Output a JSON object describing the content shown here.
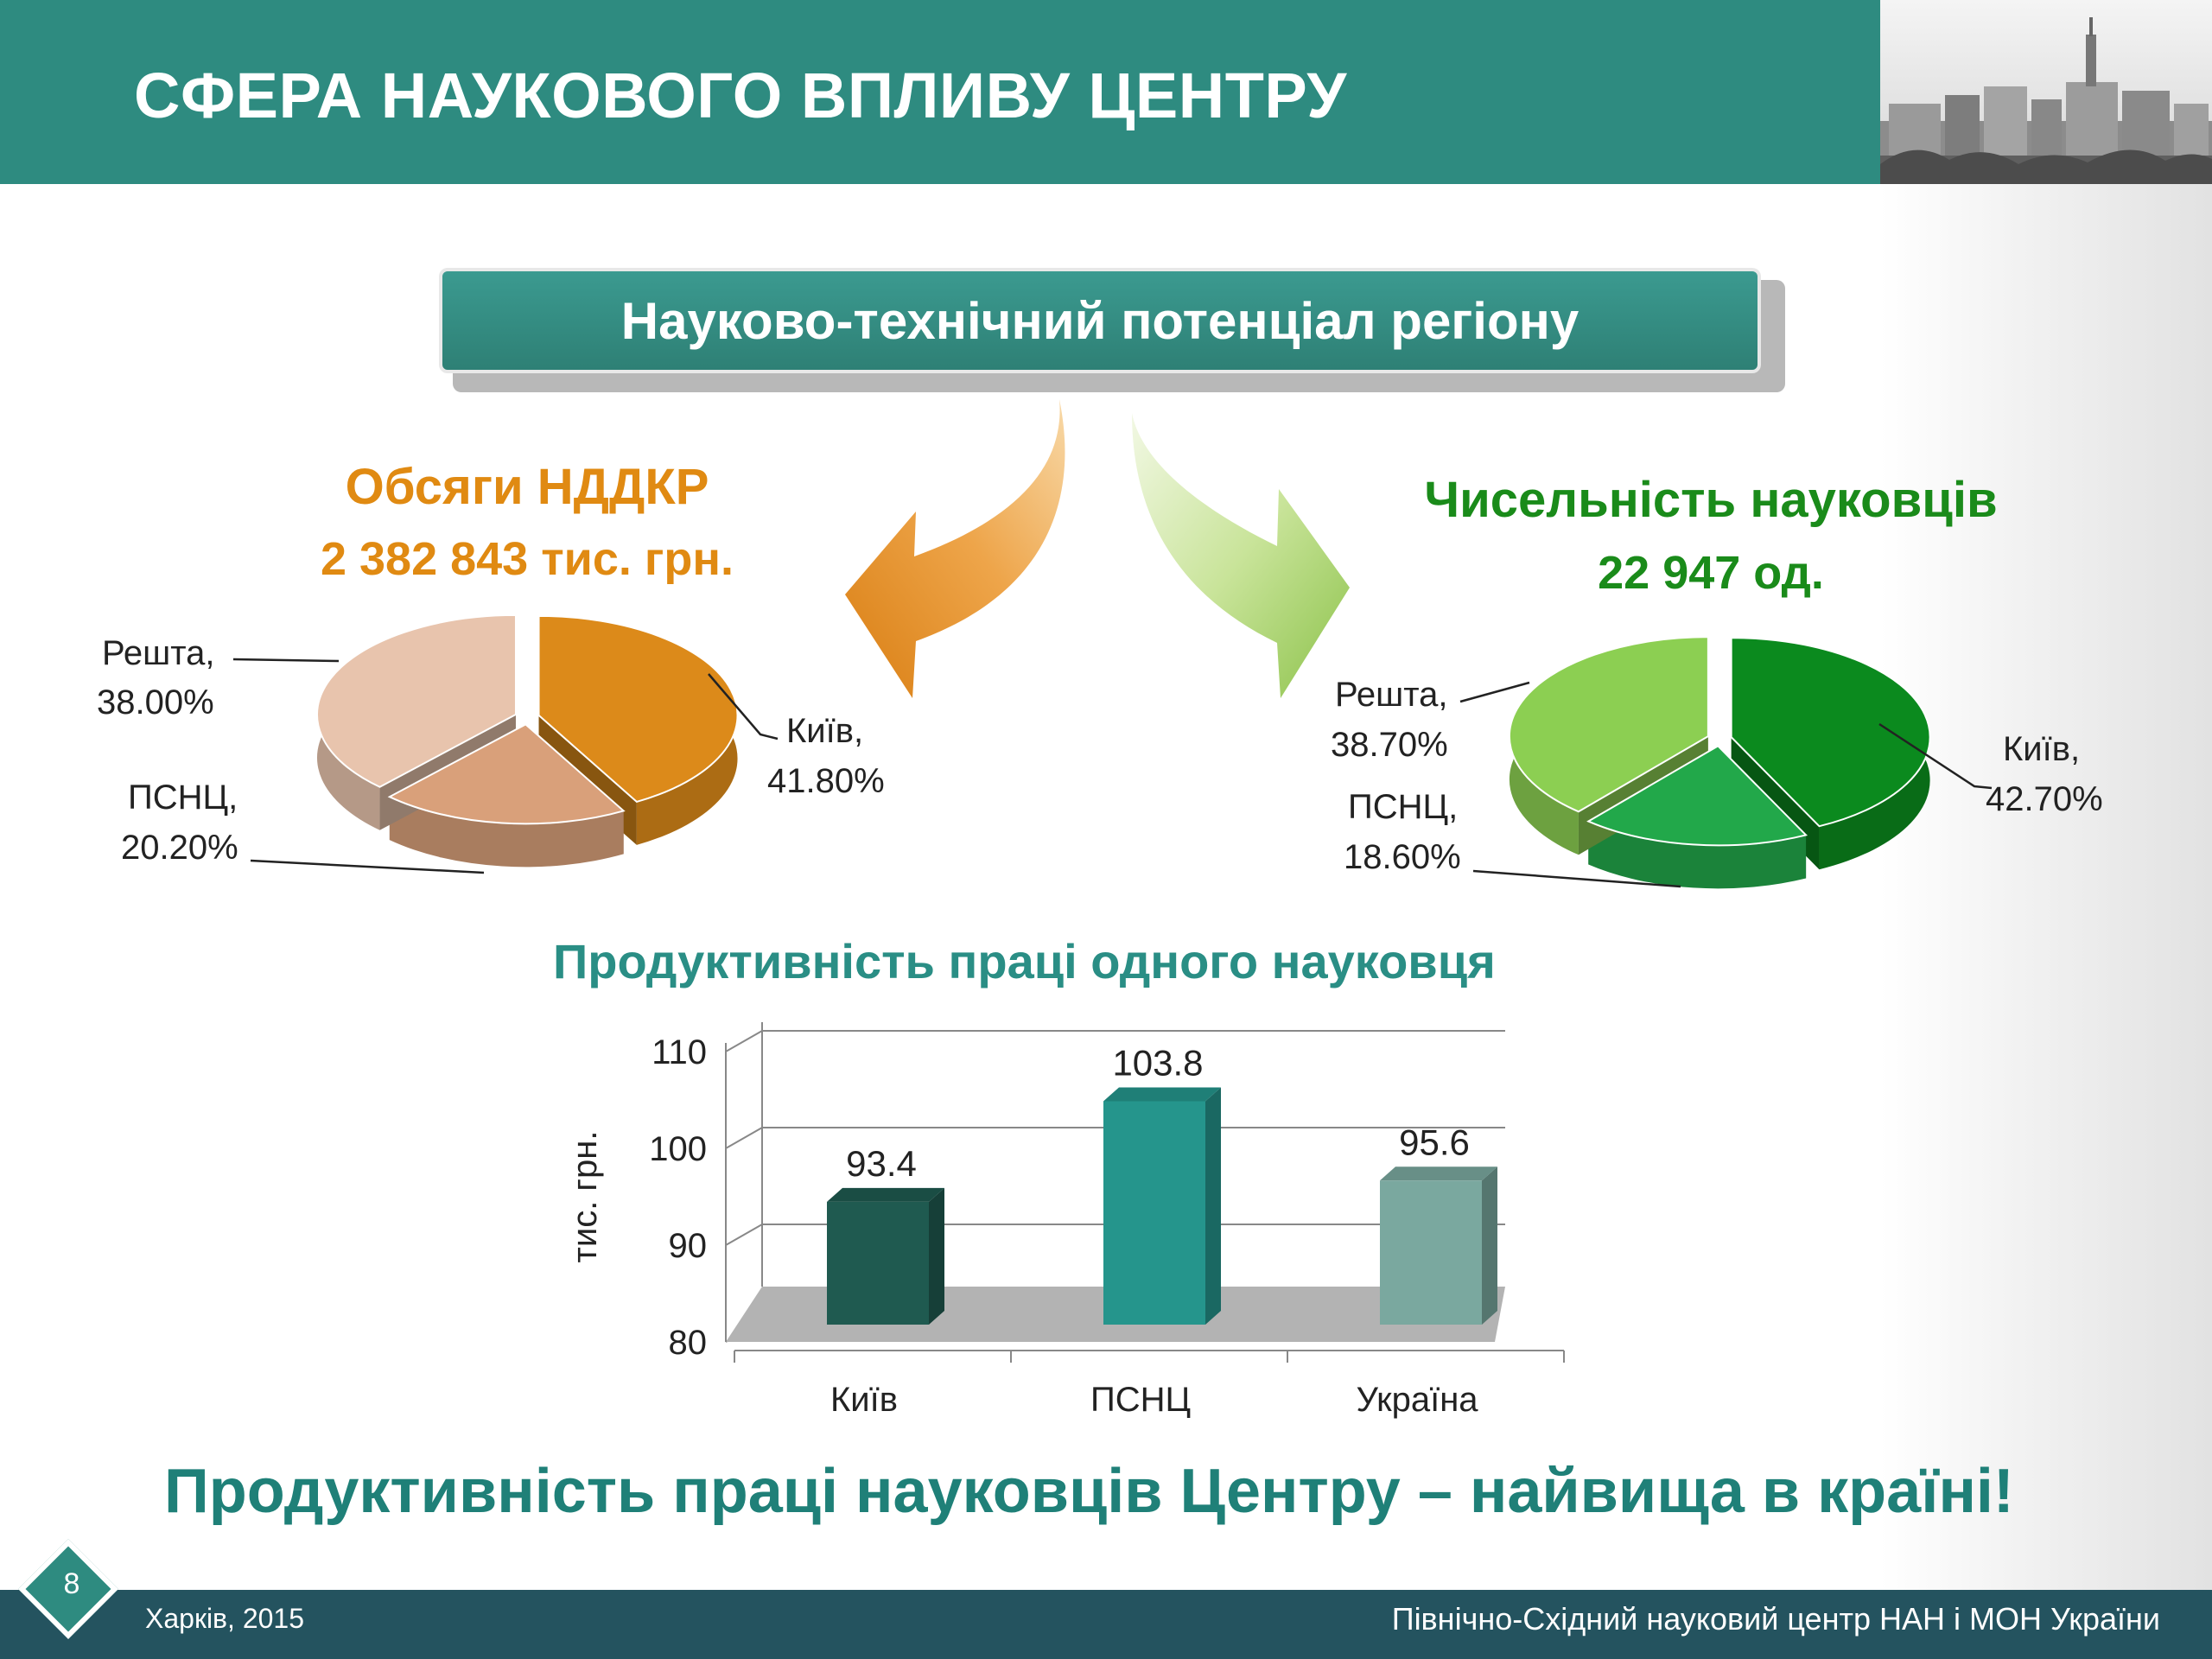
{
  "header": {
    "title": "СФЕРА НАУКОВОГО ВПЛИВУ ЦЕНТРУ"
  },
  "banner": {
    "text": "Науково-технічний потенціал регіону"
  },
  "colors": {
    "teal": "#2e8b80",
    "orange_heading": "#e08a12",
    "green_heading": "#1a8b1a",
    "bar_kyiv": "#1f5a50",
    "bar_psnc": "#25958c",
    "bar_ukraine": "#7aa89f"
  },
  "left_chart": {
    "title_line1": "Обсяги НДДКР",
    "title_line2": "2 382 843 тис. грн.",
    "label_kyiv_1": "Київ,",
    "label_kyiv_2": "41.80%",
    "label_psnc_1": "ПСНЦ,",
    "label_psnc_2": "20.20%",
    "label_rest_1": "Решта,",
    "label_rest_2": "38.00%"
  },
  "right_chart": {
    "title_line1": "Чисельність науковців",
    "title_line2": "22 947 од.",
    "label_kyiv_1": "Київ,",
    "label_kyiv_2": "42.70%",
    "label_psnc_1": "ПСНЦ,",
    "label_psnc_2": "18.60%",
    "label_rest_1": "Решта,",
    "label_rest_2": "38.70%"
  },
  "bar_chart": {
    "title": "Продуктивність праці одного науковця",
    "ylabel": "тис. грн."
  },
  "chart_data": [
    {
      "type": "pie",
      "title": "Обсяги НДДКР",
      "subtitle": "2 382 843 тис. грн.",
      "categories": [
        "Київ",
        "ПСНЦ",
        "Решта"
      ],
      "values": [
        41.8,
        20.2,
        38.0
      ],
      "colors": [
        "#dc8a1a",
        "#d9a07a",
        "#e8c4ad"
      ]
    },
    {
      "type": "pie",
      "title": "Чисельність науковців",
      "subtitle": "22 947 од.",
      "categories": [
        "Київ",
        "ПСНЦ",
        "Решта"
      ],
      "values": [
        42.7,
        18.6,
        38.7
      ],
      "colors": [
        "#0b8a1e",
        "#22a84a",
        "#8ccf52"
      ]
    },
    {
      "type": "bar",
      "title": "Продуктивність праці одного науковця",
      "categories": [
        "Київ",
        "ПСНЦ",
        "Україна"
      ],
      "values": [
        93.4,
        103.8,
        95.6
      ],
      "value_labels": [
        "93.4",
        "103.8",
        "95.6"
      ],
      "ylabel": "тис. грн.",
      "xlabel": "",
      "ylim": [
        80,
        110
      ],
      "yticks": [
        "80",
        "90",
        "100",
        "110"
      ],
      "grid": true
    }
  ],
  "conclusion": "Продуктивність праці науковців Центру – найвища в країні!",
  "footer": {
    "left": "Харків, 2015",
    "right": "Північно-Східний науковий центр НАН і МОН України",
    "page_number": "8"
  }
}
